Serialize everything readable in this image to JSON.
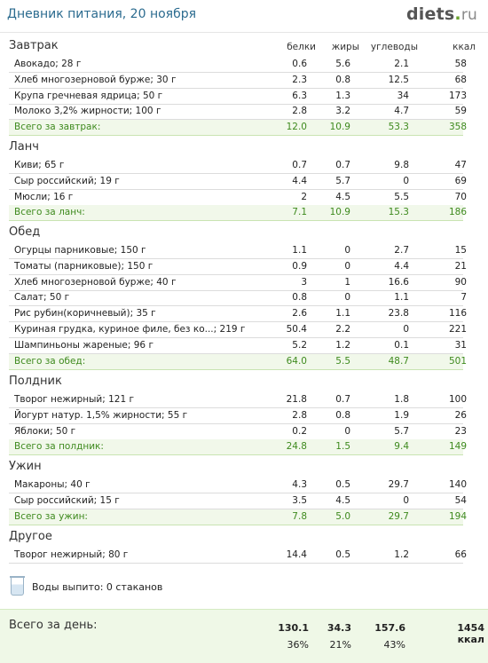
{
  "header": {
    "title": "Дневник питания, 20 ноября",
    "logo": {
      "name": "diets",
      "dot": ".",
      "tld": "ru"
    }
  },
  "columns": {
    "protein": "белки",
    "fat": "жиры",
    "carbs": "углеводы",
    "kcal": "ккал"
  },
  "sections": [
    {
      "title": "Завтрак",
      "items": [
        {
          "name": "Авокадо; 28 г",
          "protein": "0.6",
          "fat": "5.6",
          "carbs": "2.1",
          "kcal": "58"
        },
        {
          "name": "Хлеб многозерновой бурже; 30 г",
          "protein": "2.3",
          "fat": "0.8",
          "carbs": "12.5",
          "kcal": "68"
        },
        {
          "name": "Крупа гречневая ядрица; 50 г",
          "protein": "6.3",
          "fat": "1.3",
          "carbs": "34",
          "kcal": "173"
        },
        {
          "name": "Молоко 3,2% жирности; 100 г",
          "protein": "2.8",
          "fat": "3.2",
          "carbs": "4.7",
          "kcal": "59"
        }
      ],
      "total": {
        "name": "Всего за завтрак:",
        "protein": "12.0",
        "fat": "10.9",
        "carbs": "53.3",
        "kcal": "358"
      }
    },
    {
      "title": "Ланч",
      "items": [
        {
          "name": "Киви; 65 г",
          "protein": "0.7",
          "fat": "0.7",
          "carbs": "9.8",
          "kcal": "47"
        },
        {
          "name": "Сыр российский; 19 г",
          "protein": "4.4",
          "fat": "5.7",
          "carbs": "0",
          "kcal": "69"
        },
        {
          "name": "Мюсли; 16 г",
          "protein": "2",
          "fat": "4.5",
          "carbs": "5.5",
          "kcal": "70"
        }
      ],
      "total": {
        "name": "Всего за ланч:",
        "protein": "7.1",
        "fat": "10.9",
        "carbs": "15.3",
        "kcal": "186"
      }
    },
    {
      "title": "Обед",
      "items": [
        {
          "name": "Огурцы парниковые; 150 г",
          "protein": "1.1",
          "fat": "0",
          "carbs": "2.7",
          "kcal": "15"
        },
        {
          "name": "Томаты (парниковые); 150 г",
          "protein": "0.9",
          "fat": "0",
          "carbs": "4.4",
          "kcal": "21"
        },
        {
          "name": "Хлеб многозерновой бурже; 40 г",
          "protein": "3",
          "fat": "1",
          "carbs": "16.6",
          "kcal": "90"
        },
        {
          "name": "Салат; 50 г",
          "protein": "0.8",
          "fat": "0",
          "carbs": "1.1",
          "kcal": "7"
        },
        {
          "name": "Рис рубин(коричневый); 35 г",
          "protein": "2.6",
          "fat": "1.1",
          "carbs": "23.8",
          "kcal": "116"
        },
        {
          "name": "Куриная грудка, куриное филе, без ко...; 219 г",
          "protein": "50.4",
          "fat": "2.2",
          "carbs": "0",
          "kcal": "221"
        },
        {
          "name": "Шампиньоны жареные; 96 г",
          "protein": "5.2",
          "fat": "1.2",
          "carbs": "0.1",
          "kcal": "31"
        }
      ],
      "total": {
        "name": "Всего за обед:",
        "protein": "64.0",
        "fat": "5.5",
        "carbs": "48.7",
        "kcal": "501"
      }
    },
    {
      "title": "Полдник",
      "items": [
        {
          "name": "Творог нежирный; 121 г",
          "protein": "21.8",
          "fat": "0.7",
          "carbs": "1.8",
          "kcal": "100"
        },
        {
          "name": "Йогурт натур. 1,5% жирности; 55 г",
          "protein": "2.8",
          "fat": "0.8",
          "carbs": "1.9",
          "kcal": "26"
        },
        {
          "name": "Яблоки; 50 г",
          "protein": "0.2",
          "fat": "0",
          "carbs": "5.7",
          "kcal": "23"
        }
      ],
      "total": {
        "name": "Всего за полдник:",
        "protein": "24.8",
        "fat": "1.5",
        "carbs": "9.4",
        "kcal": "149"
      }
    },
    {
      "title": "Ужин",
      "items": [
        {
          "name": "Макароны; 40 г",
          "protein": "4.3",
          "fat": "0.5",
          "carbs": "29.7",
          "kcal": "140"
        },
        {
          "name": "Сыр российский; 15 г",
          "protein": "3.5",
          "fat": "4.5",
          "carbs": "0",
          "kcal": "54"
        }
      ],
      "total": {
        "name": "Всего за ужин:",
        "protein": "7.8",
        "fat": "5.0",
        "carbs": "29.7",
        "kcal": "194"
      }
    },
    {
      "title": "Другое",
      "items": [
        {
          "name": "Творог нежирный; 80 г",
          "protein": "14.4",
          "fat": "0.5",
          "carbs": "1.2",
          "kcal": "66"
        }
      ]
    }
  ],
  "water": {
    "text": "Воды выпито: 0 стаканов",
    "icon": "water-glass-icon"
  },
  "day_total": {
    "label": "Всего за день:",
    "protein": "130.1",
    "fat": "34.3",
    "carbs": "157.6",
    "kcal": "1454 ккал",
    "protein_pct": "36%",
    "fat_pct": "21%",
    "carbs_pct": "43%"
  },
  "colors": {
    "title": "#2b6b8f",
    "total_text": "#3e8a1e",
    "total_bg": "#f1f8ea",
    "day_bg": "#eff8e7"
  }
}
